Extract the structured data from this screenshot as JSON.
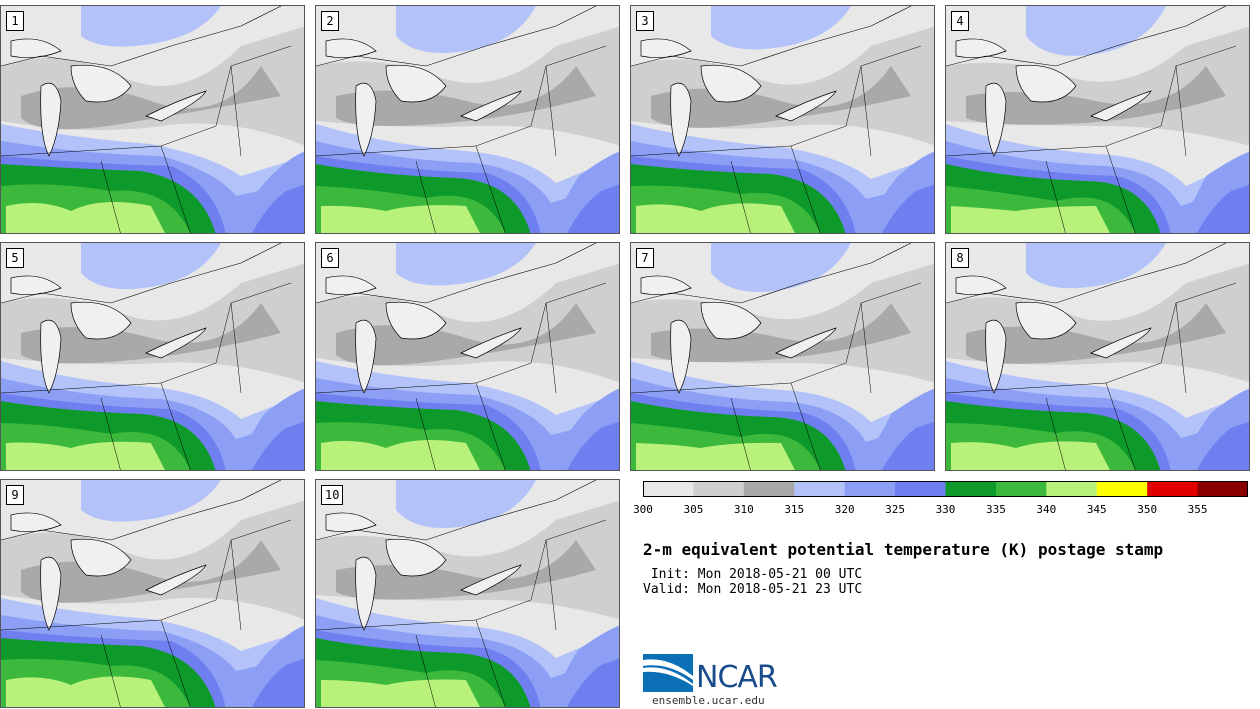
{
  "panels": [
    {
      "label": "1"
    },
    {
      "label": "2"
    },
    {
      "label": "3"
    },
    {
      "label": "4"
    },
    {
      "label": "5"
    },
    {
      "label": "6"
    },
    {
      "label": "7"
    },
    {
      "label": "8"
    },
    {
      "label": "9"
    },
    {
      "label": "10"
    }
  ],
  "colorbar": {
    "ticks": [
      "300",
      "305",
      "310",
      "315",
      "320",
      "325",
      "330",
      "335",
      "340",
      "345",
      "350",
      "355"
    ],
    "colors": [
      "#e8e8e8",
      "#cfcfcf",
      "#a9a9a9",
      "#b3c3fa",
      "#8c9ff5",
      "#6f7ff0",
      "#0e9a2a",
      "#3cb83c",
      "#b8f27a",
      "#ffff00",
      "#e00000",
      "#8a0000"
    ]
  },
  "title": "2-m equivalent potential temperature (K) postage stamp",
  "init": " Init: Mon 2018-05-21 00 UTC",
  "valid": "Valid: Mon 2018-05-21 23 UTC",
  "logo": {
    "text": "NCAR",
    "url": "ensemble.ucar.edu"
  }
}
